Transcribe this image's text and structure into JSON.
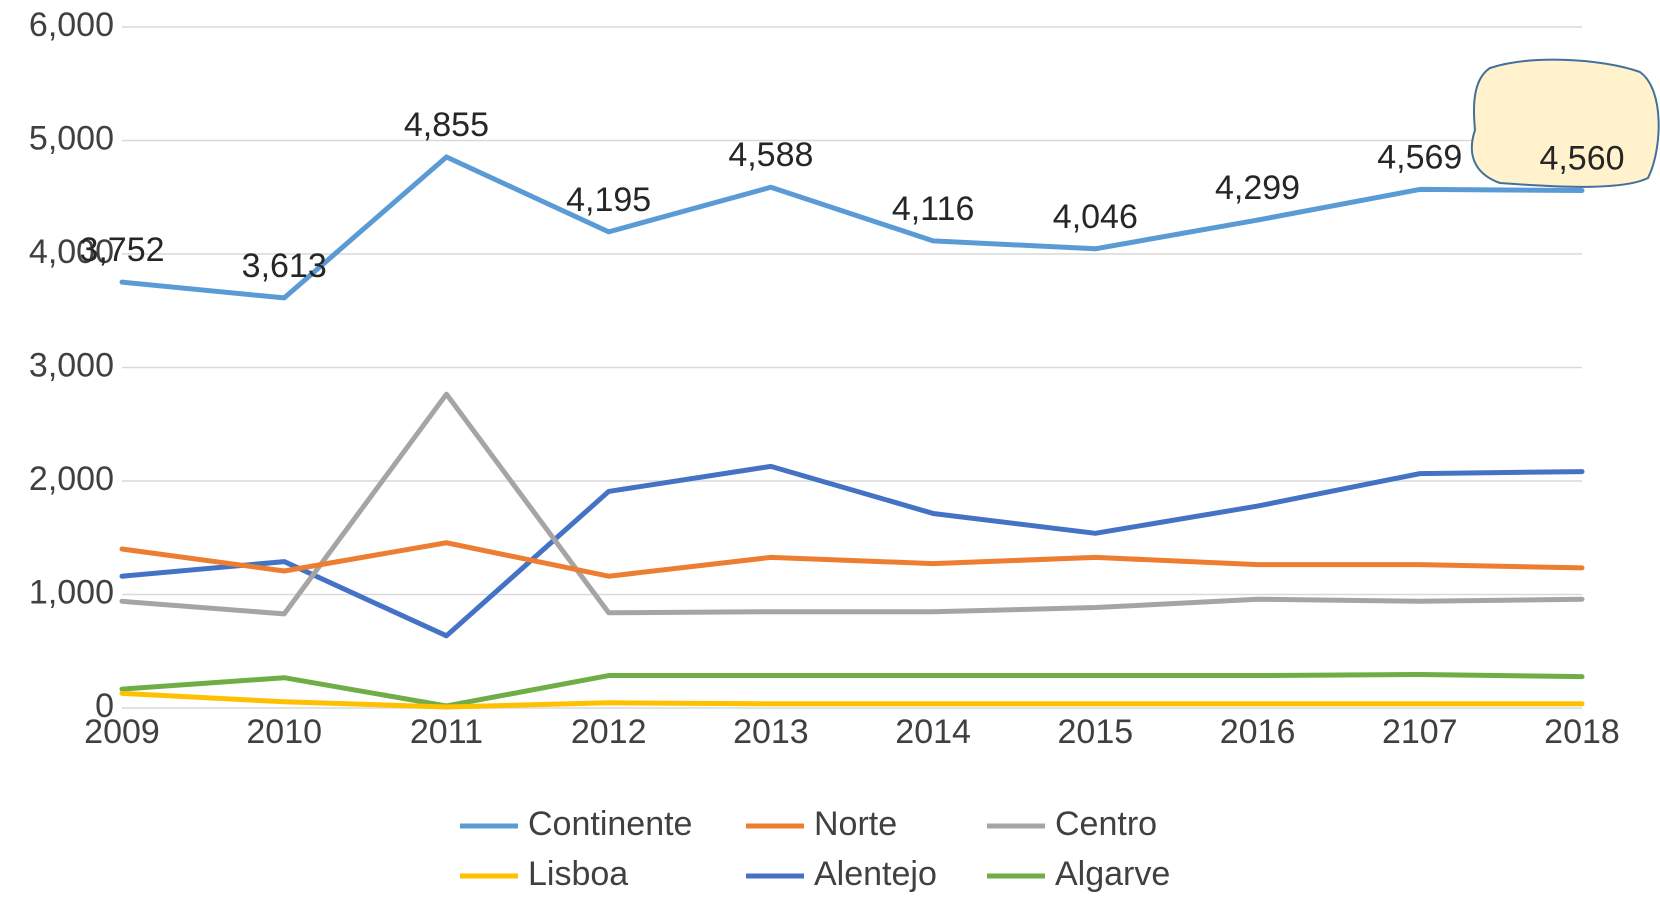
{
  "chart_data": {
    "type": "line",
    "categories": [
      "2009",
      "2010",
      "2011",
      "2012",
      "2013",
      "2014",
      "2015",
      "2016",
      "2107",
      "2018"
    ],
    "ylim": [
      0,
      6000
    ],
    "yticks": [
      0,
      {
        "value": 1000,
        "label": "1,000"
      },
      {
        "value": 2000,
        "label": "2,000"
      },
      {
        "value": 3000,
        "label": "3,000"
      },
      {
        "value": 4000,
        "label": "4,000"
      },
      {
        "value": 5000,
        "label": "5,000"
      },
      {
        "value": 6000,
        "label": "6,000"
      }
    ],
    "grid": true,
    "legend": "bottom",
    "series": [
      {
        "name": "Continente",
        "color": "#5b9bd5",
        "values": [
          3752,
          3613,
          4855,
          4195,
          4588,
          4116,
          4046,
          4299,
          4569,
          4560
        ],
        "value_labels": [
          "3,752",
          "3,613",
          "4,855",
          "4,195",
          "4,588",
          "4,116",
          "4,046",
          "4,299",
          "4,569",
          "4,560"
        ]
      },
      {
        "name": "Norte",
        "color": "#ed7d31",
        "values": [
          1401,
          1207,
          1456,
          1161,
          1327,
          1272,
          1327,
          1263,
          1263,
          1235
        ]
      },
      {
        "name": "Centro",
        "color": "#a5a5a5",
        "values": [
          940,
          829,
          2765,
          839,
          848,
          848,
          885,
          958,
          940,
          958
        ]
      },
      {
        "name": "Lisboa",
        "color": "#ffc000",
        "values": [
          129,
          55,
          9,
          46,
          37,
          37,
          37,
          37,
          37,
          37
        ]
      },
      {
        "name": "Alentejo",
        "color": "#4472c4",
        "values": [
          1161,
          1290,
          636,
          1908,
          2129,
          1714,
          1539,
          1779,
          2065,
          2083
        ]
      },
      {
        "name": "Algarve",
        "color": "#70ad47",
        "values": [
          166,
          267,
          18,
          286,
          286,
          286,
          286,
          286,
          295,
          276
        ]
      }
    ]
  }
}
